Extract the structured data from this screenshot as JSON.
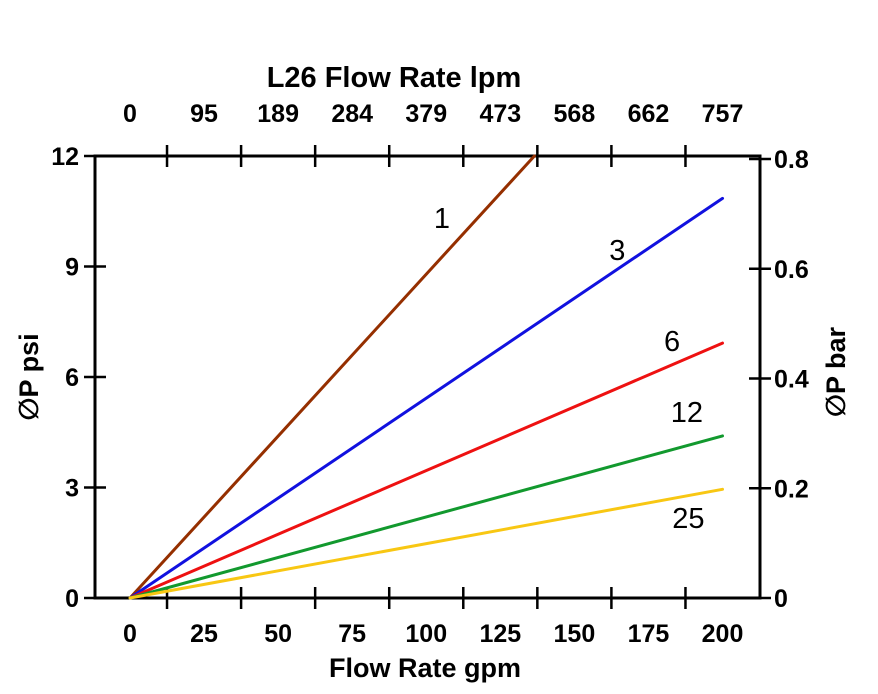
{
  "chart_data": {
    "type": "line",
    "title": "L26 Flow Rate lpm",
    "grid": false,
    "legend": "inline-labels-on-lines",
    "axes": {
      "top": {
        "label": "L26 Flow Rate lpm",
        "unit": "lpm",
        "ticks": [
          "0",
          "95",
          "189",
          "284",
          "379",
          "473",
          "568",
          "662",
          "757"
        ]
      },
      "bottom": {
        "label": "Flow Rate gpm",
        "unit": "gpm",
        "ticks": [
          "0",
          "25",
          "50",
          "75",
          "100",
          "125",
          "150",
          "175",
          "200"
        ],
        "range": [
          0,
          200
        ]
      },
      "left": {
        "label": "∅P psi",
        "unit": "psi",
        "ticks": [
          "0",
          "3",
          "6",
          "9",
          "12"
        ],
        "range": [
          0,
          12
        ]
      },
      "right": {
        "label": "∅P bar",
        "unit": "bar",
        "ticks": [
          "0",
          "0.2",
          "0.4",
          "0.6",
          "0.8"
        ],
        "range": [
          0,
          0.8
        ]
      }
    },
    "series": [
      {
        "name": "1",
        "color": "#952F00",
        "points": [
          [
            0,
            0
          ],
          [
            136.5,
            12.0
          ]
        ],
        "label_at": [
          105.3,
          10.32
        ]
      },
      {
        "name": "3",
        "color": "#1111DF",
        "points": [
          [
            0,
            0
          ],
          [
            200,
            10.85
          ]
        ],
        "label_at": [
          164.5,
          9.45
        ]
      },
      {
        "name": "6",
        "color": "#EE1111",
        "points": [
          [
            0,
            0
          ],
          [
            200,
            6.92
          ]
        ],
        "label_at": [
          183.0,
          6.98
        ]
      },
      {
        "name": "12",
        "color": "#12992E",
        "points": [
          [
            0,
            0
          ],
          [
            200,
            4.4
          ]
        ],
        "label_at": [
          188.0,
          5.05
        ]
      },
      {
        "name": "25",
        "color": "#F8C713",
        "points": [
          [
            0,
            0
          ],
          [
            200,
            2.95
          ]
        ],
        "label_at": [
          188.5,
          2.17
        ]
      }
    ],
    "axis_color": "#000000"
  }
}
